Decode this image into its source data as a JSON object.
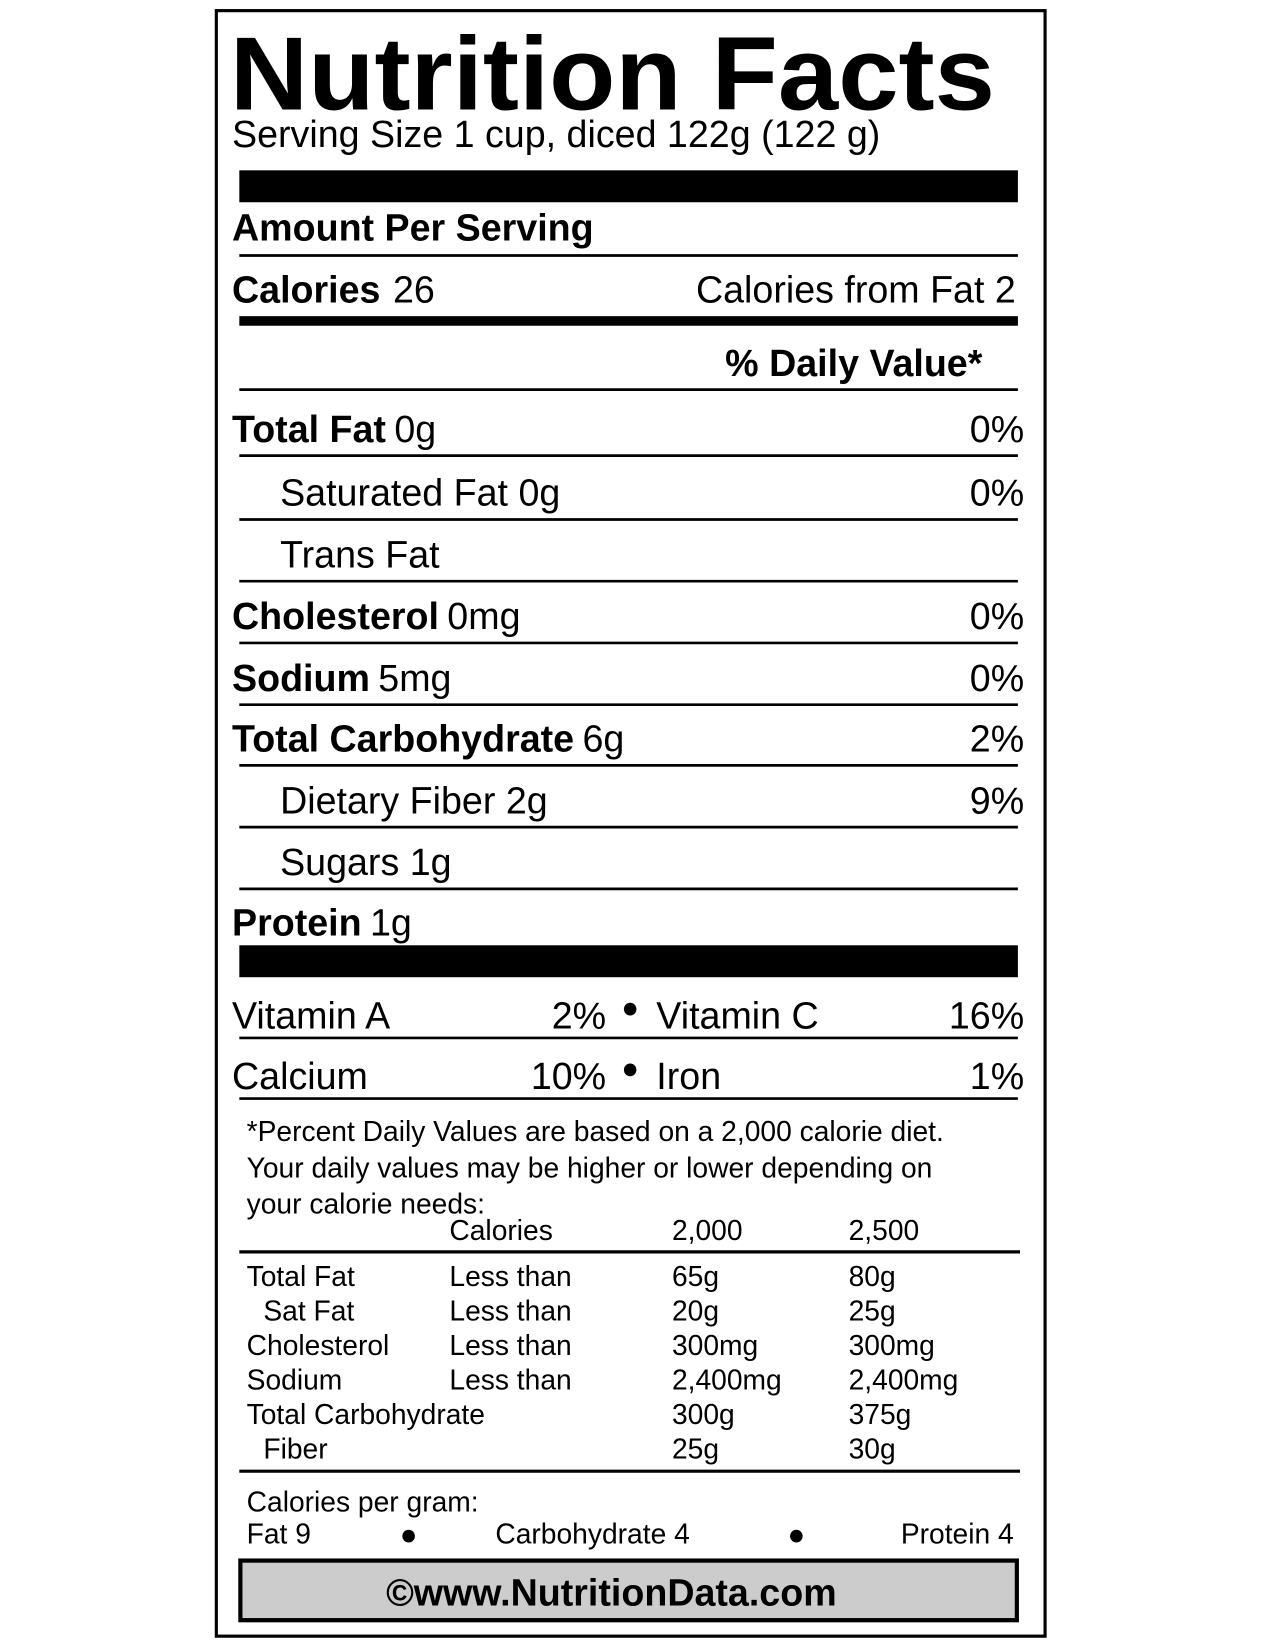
{
  "title": "Nutrition Facts",
  "serving_size": "Serving Size 1 cup, diced 122g (122 g)",
  "amount_per_serving": "Amount Per Serving",
  "calories": {
    "label": "Calories",
    "value": "26"
  },
  "calories_from_fat": {
    "label": "Calories from Fat",
    "value": "2"
  },
  "daily_value_header": "% Daily Value*",
  "nutrients": [
    {
      "name": "Total Fat",
      "amount": "0g",
      "dv": "0%"
    },
    {
      "name": "Saturated Fat",
      "amount": "0g",
      "dv": "0%"
    },
    {
      "name": "Trans Fat"
    },
    {
      "name": "Cholesterol",
      "amount": "0mg",
      "dv": "0%"
    },
    {
      "name": "Sodium",
      "amount": "5mg",
      "dv": "0%"
    },
    {
      "name": "Total Carbohydrate",
      "amount": "6g",
      "dv": "2%"
    },
    {
      "name": "Dietary Fiber",
      "amount": "2g",
      "dv": "9%"
    },
    {
      "name": "Sugars",
      "amount": "1g"
    },
    {
      "name": "Protein",
      "amount": "1g"
    }
  ],
  "vitamins": [
    {
      "name": "Vitamin A",
      "dv": "2%"
    },
    {
      "name": "Vitamin C",
      "dv": "16%"
    },
    {
      "name": "Calcium",
      "dv": "10%"
    },
    {
      "name": "Iron",
      "dv": "1%"
    }
  ],
  "footnote": [
    "*Percent Daily Values are based on a 2,000 calorie diet.",
    "Your daily values may be higher or lower depending on",
    "your calorie needs:"
  ],
  "reference_table": {
    "header": {
      "label": "Calories",
      "col1": "2,000",
      "col2": "2,500"
    },
    "rows": [
      {
        "name": "Total Fat",
        "limit": "Less than",
        "col1": "65g",
        "col2": "80g"
      },
      {
        "name": "Sat Fat",
        "limit": "Less than",
        "col1": "20g",
        "col2": "25g"
      },
      {
        "name": "Cholesterol",
        "limit": "Less than",
        "col1": "300mg",
        "col2": "300mg"
      },
      {
        "name": "Sodium",
        "limit": "Less than",
        "col1": "2,400mg",
        "col2": "2,400mg"
      },
      {
        "name": "Total Carbohydrate",
        "col1": "300g",
        "col2": "375g"
      },
      {
        "name": "Fiber",
        "col1": "25g",
        "col2": "30g"
      }
    ]
  },
  "calories_per_gram": {
    "label": "Calories per gram:",
    "fat": "Fat 9",
    "carbohydrate": "Carbohydrate 4",
    "protein": "Protein 4"
  },
  "footer": "©www.NutritionData.com"
}
